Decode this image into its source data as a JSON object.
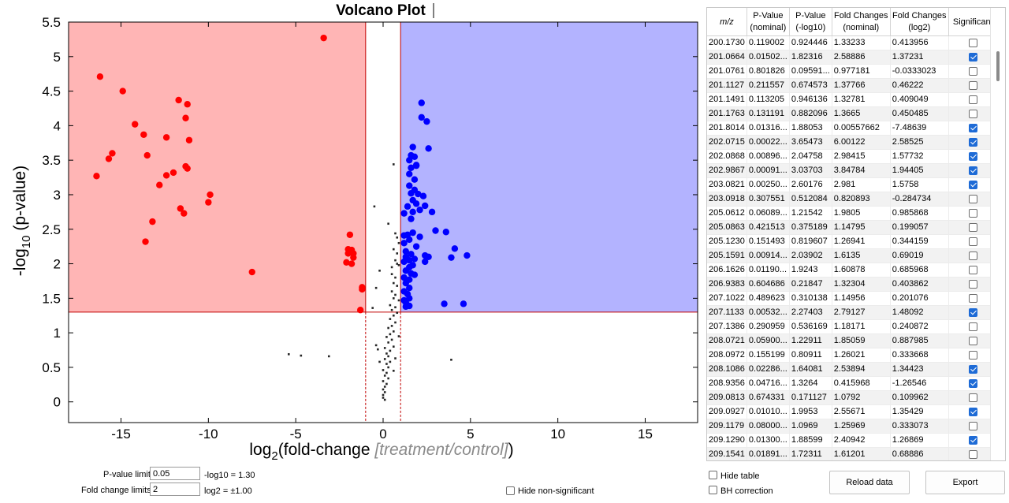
{
  "colors": {
    "left_region": "#ffb5b5",
    "right_region": "#b3b3ff",
    "decreased_point": "#ff0000",
    "increased_point": "#0000ff",
    "insignificant_point": "#000000",
    "threshold_line": "#c00000",
    "checked": "#1e6bd6"
  },
  "chart_data": {
    "type": "scatter",
    "title": "Volcano Plot",
    "xlabel_main": "log",
    "xlabel_sub": "2",
    "xlabel_rest": "(fold-change ",
    "xlabel_gray": "[treatment/control]",
    "xlabel_close": ")",
    "ylabel_main": "-log",
    "ylabel_sub": "10",
    "ylabel_rest": " (p-value)",
    "xlim": [
      -18,
      18
    ],
    "ylim": [
      -0.3,
      5.5
    ],
    "xticks": [
      -15,
      -10,
      -5,
      0,
      5,
      10,
      15
    ],
    "yticks": [
      0,
      0.5,
      1,
      1.5,
      2,
      2.5,
      3,
      3.5,
      4,
      4.5,
      5,
      5.5
    ],
    "xtick_labels": [
      "-15",
      "-10",
      "-5",
      "0",
      "5",
      "10",
      "15"
    ],
    "ytick_labels": [
      "0",
      "0.5",
      "1",
      "1.5",
      "2",
      "2.5",
      "3",
      "3.5",
      "4",
      "4.5",
      "5",
      "5.5"
    ],
    "fold_threshold_log2": 1,
    "pvalue_threshold_log10": 1.3,
    "grid": false,
    "series": [
      {
        "color": "#ff0000",
        "marker": "circle",
        "points": [
          [
            -3.4,
            5.27
          ],
          [
            -16.2,
            4.71
          ],
          [
            -14.9,
            4.5
          ],
          [
            -11.7,
            4.37
          ],
          [
            -11.2,
            4.31
          ],
          [
            -11.3,
            4.11
          ],
          [
            -14.2,
            4.02
          ],
          [
            -13.7,
            3.87
          ],
          [
            -12.4,
            3.83
          ],
          [
            -11.1,
            3.79
          ],
          [
            -13.5,
            3.57
          ],
          [
            -15.5,
            3.6
          ],
          [
            -15.7,
            3.52
          ],
          [
            -11.3,
            3.41
          ],
          [
            -11.2,
            3.38
          ],
          [
            -12.0,
            3.32
          ],
          [
            -12.4,
            3.28
          ],
          [
            -16.4,
            3.27
          ],
          [
            -12.8,
            3.14
          ],
          [
            -9.9,
            3.0
          ],
          [
            -10.0,
            2.89
          ],
          [
            -11.6,
            2.8
          ],
          [
            -11.4,
            2.73
          ],
          [
            -13.2,
            2.61
          ],
          [
            -13.6,
            2.32
          ],
          [
            -1.9,
            2.42
          ],
          [
            -2.0,
            2.21
          ],
          [
            -1.8,
            2.2
          ],
          [
            -1.7,
            2.15
          ],
          [
            -2.0,
            2.15
          ],
          [
            -1.7,
            2.09
          ],
          [
            -2.1,
            2.02
          ],
          [
            -1.8,
            2.0
          ],
          [
            -7.5,
            1.88
          ],
          [
            -1.2,
            1.66
          ],
          [
            -1.2,
            1.63
          ],
          [
            -1.3,
            1.33
          ]
        ]
      },
      {
        "color": "#0000ff",
        "marker": "circle",
        "points": [
          [
            2.2,
            4.33
          ],
          [
            2.2,
            4.12
          ],
          [
            2.5,
            4.06
          ],
          [
            2.6,
            3.67
          ],
          [
            1.7,
            3.69
          ],
          [
            1.6,
            3.57
          ],
          [
            1.8,
            3.55
          ],
          [
            1.5,
            3.5
          ],
          [
            1.9,
            3.43
          ],
          [
            1.9,
            3.42
          ],
          [
            1.6,
            3.39
          ],
          [
            1.5,
            3.3
          ],
          [
            1.8,
            3.22
          ],
          [
            1.5,
            3.13
          ],
          [
            1.8,
            3.07
          ],
          [
            1.6,
            3.02
          ],
          [
            2.0,
            3.01
          ],
          [
            2.3,
            2.98
          ],
          [
            1.7,
            2.92
          ],
          [
            1.9,
            2.87
          ],
          [
            2.4,
            2.84
          ],
          [
            1.4,
            2.83
          ],
          [
            2.1,
            2.78
          ],
          [
            2.8,
            2.75
          ],
          [
            1.7,
            2.75
          ],
          [
            1.2,
            2.73
          ],
          [
            1.6,
            2.65
          ],
          [
            3.0,
            2.48
          ],
          [
            3.6,
            2.46
          ],
          [
            1.7,
            2.45
          ],
          [
            1.4,
            2.42
          ],
          [
            1.2,
            2.41
          ],
          [
            2.1,
            2.39
          ],
          [
            1.5,
            2.35
          ],
          [
            1.2,
            2.3
          ],
          [
            1.9,
            2.25
          ],
          [
            4.1,
            2.22
          ],
          [
            1.3,
            2.18
          ],
          [
            1.6,
            2.14
          ],
          [
            2.4,
            2.12
          ],
          [
            4.8,
            2.12
          ],
          [
            2.6,
            2.1
          ],
          [
            1.3,
            2.1
          ],
          [
            1.8,
            2.07
          ],
          [
            3.9,
            2.09
          ],
          [
            1.5,
            2.05
          ],
          [
            2.4,
            2.03
          ],
          [
            1.2,
            2.03
          ],
          [
            1.7,
            1.98
          ],
          [
            1.5,
            1.95
          ],
          [
            1.3,
            1.9
          ],
          [
            1.6,
            1.86
          ],
          [
            1.8,
            1.84
          ],
          [
            1.2,
            1.8
          ],
          [
            1.5,
            1.77
          ],
          [
            1.3,
            1.72
          ],
          [
            1.5,
            1.65
          ],
          [
            1.2,
            1.6
          ],
          [
            1.4,
            1.56
          ],
          [
            1.5,
            1.5
          ],
          [
            1.2,
            1.47
          ],
          [
            1.3,
            1.44
          ],
          [
            3.5,
            1.42
          ],
          [
            4.6,
            1.42
          ],
          [
            1.5,
            1.39
          ],
          [
            1.3,
            1.38
          ]
        ]
      },
      {
        "color": "#000000",
        "marker": "square",
        "points": [
          [
            0.6,
            3.44
          ],
          [
            -0.5,
            2.83
          ],
          [
            0.3,
            2.58
          ],
          [
            0.7,
            2.44
          ],
          [
            0.8,
            2.38
          ],
          [
            0.9,
            2.3
          ],
          [
            0.6,
            2.21
          ],
          [
            0.8,
            2.15
          ],
          [
            0.7,
            2.05
          ],
          [
            0.9,
            1.98
          ],
          [
            -0.2,
            1.9
          ],
          [
            0.5,
            1.85
          ],
          [
            0.7,
            1.8
          ],
          [
            0.6,
            1.72
          ],
          [
            0.8,
            1.68
          ],
          [
            -0.4,
            1.65
          ],
          [
            0.5,
            1.6
          ],
          [
            0.7,
            1.55
          ],
          [
            0.6,
            1.5
          ],
          [
            0.9,
            1.47
          ],
          [
            0.4,
            1.4
          ],
          [
            0.7,
            1.37
          ],
          [
            0.5,
            1.33
          ],
          [
            0.8,
            1.29
          ],
          [
            0.6,
            1.25
          ],
          [
            0.4,
            1.2
          ],
          [
            0.7,
            1.15
          ],
          [
            0.5,
            1.1
          ],
          [
            0.3,
            1.07
          ],
          [
            0.6,
            1.02
          ],
          [
            0.4,
            0.98
          ],
          [
            0.2,
            0.94
          ],
          [
            0.5,
            0.9
          ],
          [
            0.3,
            0.86
          ],
          [
            0.6,
            0.8
          ],
          [
            0.1,
            0.78
          ],
          [
            0.4,
            0.74
          ],
          [
            0.2,
            0.7
          ],
          [
            0.3,
            0.66
          ],
          [
            0.1,
            0.62
          ],
          [
            0.4,
            0.58
          ],
          [
            0.2,
            0.55
          ],
          [
            0.3,
            0.5
          ],
          [
            0.0,
            0.46
          ],
          [
            0.2,
            0.42
          ],
          [
            0.1,
            0.38
          ],
          [
            0.3,
            0.34
          ],
          [
            0.0,
            0.3
          ],
          [
            0.2,
            0.26
          ],
          [
            0.1,
            0.22
          ],
          [
            0.0,
            0.18
          ],
          [
            0.1,
            0.14
          ],
          [
            0.0,
            0.1
          ],
          [
            0.0,
            0.06
          ],
          [
            0.1,
            0.03
          ],
          [
            -0.4,
            0.82
          ],
          [
            -0.3,
            0.76
          ],
          [
            0.7,
            0.63
          ],
          [
            -0.2,
            0.58
          ],
          [
            0.6,
            0.45
          ],
          [
            -5.4,
            0.69
          ],
          [
            -4.7,
            0.67
          ],
          [
            -3.1,
            0.66
          ],
          [
            3.9,
            0.61
          ],
          [
            -0.6,
            1.36
          ],
          [
            0.9,
            0.95
          ],
          [
            0.5,
            1.95
          ],
          [
            0.8,
            2.0
          ]
        ]
      }
    ]
  },
  "controls": {
    "pvalue_limit_label": "P-value limit",
    "pvalue_limit_value": "0.05",
    "pvalue_limit_note": "-log10 = 1.30",
    "fold_change_label": "Fold change limits",
    "fold_change_value": "2",
    "fold_change_note": "log2 = ±1.00",
    "hide_nonsig_label": "Hide non-significant",
    "hide_table_label": "Hide table",
    "bh_correction_label": "BH correction",
    "reload_button": "Reload data",
    "export_button": "Export"
  },
  "table": {
    "headers": [
      {
        "line1": "m/z",
        "line2": ""
      },
      {
        "line1": "P-Value",
        "line2": "(nominal)"
      },
      {
        "line1": "P-Value",
        "line2": "(-log10)"
      },
      {
        "line1": "Fold Changes",
        "line2": "(nominal)"
      },
      {
        "line1": "Fold Changes",
        "line2": "(log2)"
      },
      {
        "line1": "Significant",
        "line2": ""
      }
    ],
    "rows": [
      {
        "mz": "200.1730",
        "p_nom": "0.119002",
        "p_log": "0.924446",
        "fc_nom": "1.33233",
        "fc_log": "0.413956",
        "sig": false
      },
      {
        "mz": "201.0664",
        "p_nom": "0.01502...",
        "p_log": "1.82316",
        "fc_nom": "2.58886",
        "fc_log": "1.37231",
        "sig": true
      },
      {
        "mz": "201.0761",
        "p_nom": "0.801826",
        "p_log": "0.09591...",
        "fc_nom": "0.977181",
        "fc_log": "-0.0333023",
        "sig": false
      },
      {
        "mz": "201.1127",
        "p_nom": "0.211557",
        "p_log": "0.674573",
        "fc_nom": "1.37766",
        "fc_log": "0.46222",
        "sig": false
      },
      {
        "mz": "201.1491",
        "p_nom": "0.113205",
        "p_log": "0.946136",
        "fc_nom": "1.32781",
        "fc_log": "0.409049",
        "sig": false
      },
      {
        "mz": "201.1763",
        "p_nom": "0.131191",
        "p_log": "0.882096",
        "fc_nom": "1.3665",
        "fc_log": "0.450485",
        "sig": false
      },
      {
        "mz": "201.8014",
        "p_nom": "0.01316...",
        "p_log": "1.88053",
        "fc_nom": "0.00557662",
        "fc_log": "-7.48639",
        "sig": true
      },
      {
        "mz": "202.0715",
        "p_nom": "0.00022...",
        "p_log": "3.65473",
        "fc_nom": "6.00122",
        "fc_log": "2.58525",
        "sig": true
      },
      {
        "mz": "202.0868",
        "p_nom": "0.00896...",
        "p_log": "2.04758",
        "fc_nom": "2.98415",
        "fc_log": "1.57732",
        "sig": true
      },
      {
        "mz": "202.9867",
        "p_nom": "0.00091...",
        "p_log": "3.03703",
        "fc_nom": "3.84784",
        "fc_log": "1.94405",
        "sig": true
      },
      {
        "mz": "203.0821",
        "p_nom": "0.00250...",
        "p_log": "2.60176",
        "fc_nom": "2.981",
        "fc_log": "1.5758",
        "sig": true
      },
      {
        "mz": "203.0918",
        "p_nom": "0.307551",
        "p_log": "0.512084",
        "fc_nom": "0.820893",
        "fc_log": "-0.284734",
        "sig": false
      },
      {
        "mz": "205.0612",
        "p_nom": "0.06089...",
        "p_log": "1.21542",
        "fc_nom": "1.9805",
        "fc_log": "0.985868",
        "sig": false
      },
      {
        "mz": "205.0863",
        "p_nom": "0.421513",
        "p_log": "0.375189",
        "fc_nom": "1.14795",
        "fc_log": "0.199057",
        "sig": false
      },
      {
        "mz": "205.1230",
        "p_nom": "0.151493",
        "p_log": "0.819607",
        "fc_nom": "1.26941",
        "fc_log": "0.344159",
        "sig": false
      },
      {
        "mz": "205.1591",
        "p_nom": "0.00914...",
        "p_log": "2.03902",
        "fc_nom": "1.6135",
        "fc_log": "0.69019",
        "sig": false
      },
      {
        "mz": "206.1626",
        "p_nom": "0.01190...",
        "p_log": "1.9243",
        "fc_nom": "1.60878",
        "fc_log": "0.685968",
        "sig": false
      },
      {
        "mz": "206.9383",
        "p_nom": "0.604686",
        "p_log": "0.21847",
        "fc_nom": "1.32304",
        "fc_log": "0.403862",
        "sig": false
      },
      {
        "mz": "207.1022",
        "p_nom": "0.489623",
        "p_log": "0.310138",
        "fc_nom": "1.14956",
        "fc_log": "0.201076",
        "sig": false
      },
      {
        "mz": "207.1133",
        "p_nom": "0.00532...",
        "p_log": "2.27403",
        "fc_nom": "2.79127",
        "fc_log": "1.48092",
        "sig": true
      },
      {
        "mz": "207.1386",
        "p_nom": "0.290959",
        "p_log": "0.536169",
        "fc_nom": "1.18171",
        "fc_log": "0.240872",
        "sig": false
      },
      {
        "mz": "208.0721",
        "p_nom": "0.05900...",
        "p_log": "1.22911",
        "fc_nom": "1.85059",
        "fc_log": "0.887985",
        "sig": false
      },
      {
        "mz": "208.0972",
        "p_nom": "0.155199",
        "p_log": "0.80911",
        "fc_nom": "1.26021",
        "fc_log": "0.333668",
        "sig": false
      },
      {
        "mz": "208.1086",
        "p_nom": "0.02286...",
        "p_log": "1.64081",
        "fc_nom": "2.53894",
        "fc_log": "1.34423",
        "sig": true
      },
      {
        "mz": "208.9356",
        "p_nom": "0.04716...",
        "p_log": "1.3264",
        "fc_nom": "0.415968",
        "fc_log": "-1.26546",
        "sig": true
      },
      {
        "mz": "209.0813",
        "p_nom": "0.674331",
        "p_log": "0.171127",
        "fc_nom": "1.0792",
        "fc_log": "0.109962",
        "sig": false
      },
      {
        "mz": "209.0927",
        "p_nom": "0.01010...",
        "p_log": "1.9953",
        "fc_nom": "2.55671",
        "fc_log": "1.35429",
        "sig": true
      },
      {
        "mz": "209.1179",
        "p_nom": "0.08000...",
        "p_log": "1.0969",
        "fc_nom": "1.25969",
        "fc_log": "0.333073",
        "sig": false
      },
      {
        "mz": "209.1290",
        "p_nom": "0.01300...",
        "p_log": "1.88599",
        "fc_nom": "2.40942",
        "fc_log": "1.26869",
        "sig": true
      },
      {
        "mz": "209.1541",
        "p_nom": "0.01891...",
        "p_log": "1.72311",
        "fc_nom": "1.61201",
        "fc_log": "0.68886",
        "sig": false
      }
    ]
  }
}
